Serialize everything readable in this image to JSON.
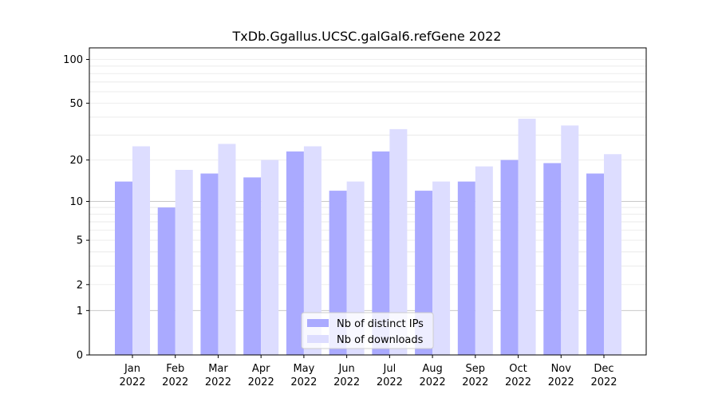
{
  "chart_data": {
    "type": "bar",
    "title": "TxDb.Ggallus.UCSC.galGal6.refGene 2022",
    "xlabel": "",
    "ylabel": "",
    "y_scale": "log(1+y)",
    "ylim": [
      0,
      120
    ],
    "y_ticks": [
      0,
      1,
      2,
      5,
      10,
      20,
      50,
      100
    ],
    "grid": "horizontal",
    "legend_position": "bottom-center",
    "categories": [
      "Jan\n2022",
      "Feb\n2022",
      "Mar\n2022",
      "Apr\n2022",
      "May\n2022",
      "Jun\n2022",
      "Jul\n2022",
      "Aug\n2022",
      "Sep\n2022",
      "Oct\n2022",
      "Nov\n2022",
      "Dec\n2022"
    ],
    "series": [
      {
        "name": "Nb of distinct IPs",
        "color": "#aaaaff",
        "values": [
          14,
          9,
          16,
          15,
          23,
          12,
          23,
          12,
          14,
          20,
          19,
          16
        ]
      },
      {
        "name": "Nb of downloads",
        "color": "#ddddff",
        "values": [
          25,
          17,
          26,
          20,
          25,
          14,
          33,
          14,
          18,
          39,
          35,
          22
        ]
      }
    ]
  }
}
